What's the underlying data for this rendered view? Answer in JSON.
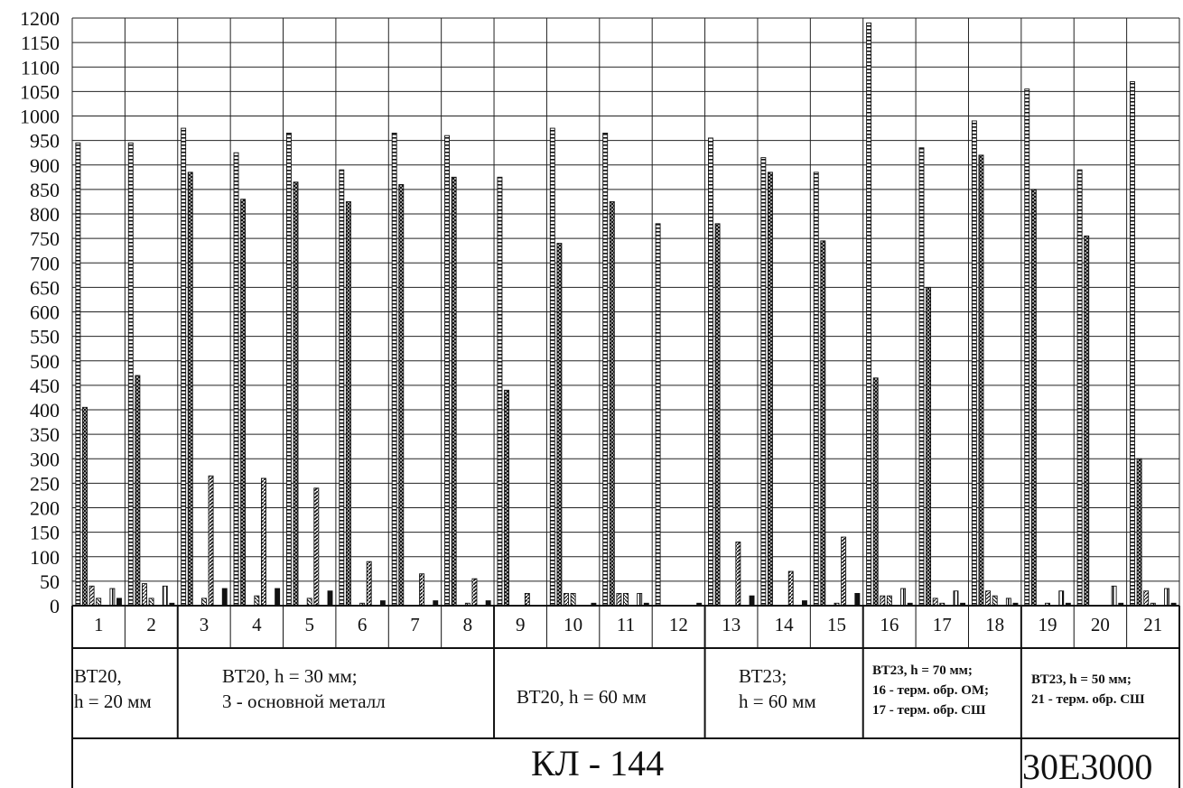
{
  "chart_data": {
    "type": "bar",
    "ylim": [
      0,
      1200
    ],
    "yticks": [
      "0",
      "50",
      "100",
      "150",
      "200",
      "250",
      "300",
      "350",
      "400",
      "450",
      "500",
      "550",
      "600",
      "650",
      "700",
      "750",
      "800",
      "850",
      "900",
      "950",
      "1000",
      "1050",
      "1100",
      "1150",
      "1200"
    ],
    "grid": "on",
    "categories": [
      "1",
      "2",
      "3",
      "4",
      "5",
      "6",
      "7",
      "8",
      "9",
      "10",
      "11",
      "12",
      "13",
      "14",
      "15",
      "16",
      "17",
      "18",
      "19",
      "20",
      "21"
    ],
    "series": [
      {
        "values": [
          945,
          945,
          975,
          925,
          965,
          890,
          965,
          960,
          875,
          975,
          965,
          780,
          955,
          915,
          885,
          1190,
          935,
          990,
          1055,
          890,
          1070
        ]
      },
      {
        "values": [
          405,
          470,
          885,
          830,
          865,
          825,
          860,
          875,
          440,
          740,
          825,
          0,
          780,
          885,
          745,
          465,
          650,
          920,
          850,
          755,
          300
        ]
      },
      {
        "values": [
          40,
          45,
          0,
          0,
          0,
          0,
          0,
          0,
          0,
          25,
          25,
          0,
          0,
          0,
          0,
          20,
          15,
          30,
          0,
          0,
          30
        ]
      },
      {
        "values": [
          15,
          15,
          15,
          20,
          15,
          5,
          0,
          5,
          0,
          25,
          25,
          0,
          0,
          0,
          5,
          20,
          5,
          20,
          5,
          0,
          5
        ]
      },
      {
        "values": [
          0,
          0,
          265,
          260,
          240,
          90,
          65,
          55,
          25,
          0,
          0,
          0,
          130,
          70,
          140,
          0,
          0,
          0,
          0,
          0,
          0
        ]
      },
      {
        "values": [
          35,
          40,
          0,
          0,
          0,
          0,
          0,
          0,
          0,
          0,
          25,
          0,
          0,
          0,
          0,
          35,
          30,
          15,
          30,
          40,
          35
        ]
      },
      {
        "values": [
          15,
          5,
          35,
          35,
          30,
          10,
          10,
          10,
          0,
          5,
          5,
          5,
          20,
          10,
          25,
          5,
          5,
          5,
          5,
          5,
          5
        ]
      }
    ],
    "table_row_numbers": [
      "1",
      "2",
      "3",
      "4",
      "5",
      "6",
      "7",
      "8",
      "9",
      "10",
      "11",
      "12",
      "13",
      "14",
      "15",
      "16",
      "17",
      "18",
      "19",
      "20",
      "21"
    ],
    "groups": [
      {
        "text": "ВТ20,\nh = 20 мм"
      },
      {
        "text": "ВТ20, h = 30 мм;\n3 - основной металл"
      },
      {
        "text": "ВТ20, h = 60 мм"
      },
      {
        "text": "ВТ23;\nh = 60 мм"
      },
      {
        "text": "ВТ23, h = 70 мм;\n16 - терм. обр. ОМ;\n17 - терм. обр. СШ"
      },
      {
        "text": "ВТ23, h = 50 мм;\n21 - терм. обр. СШ"
      }
    ],
    "bottom_labels": [
      "КЛ - 144",
      "30Е3000"
    ]
  }
}
